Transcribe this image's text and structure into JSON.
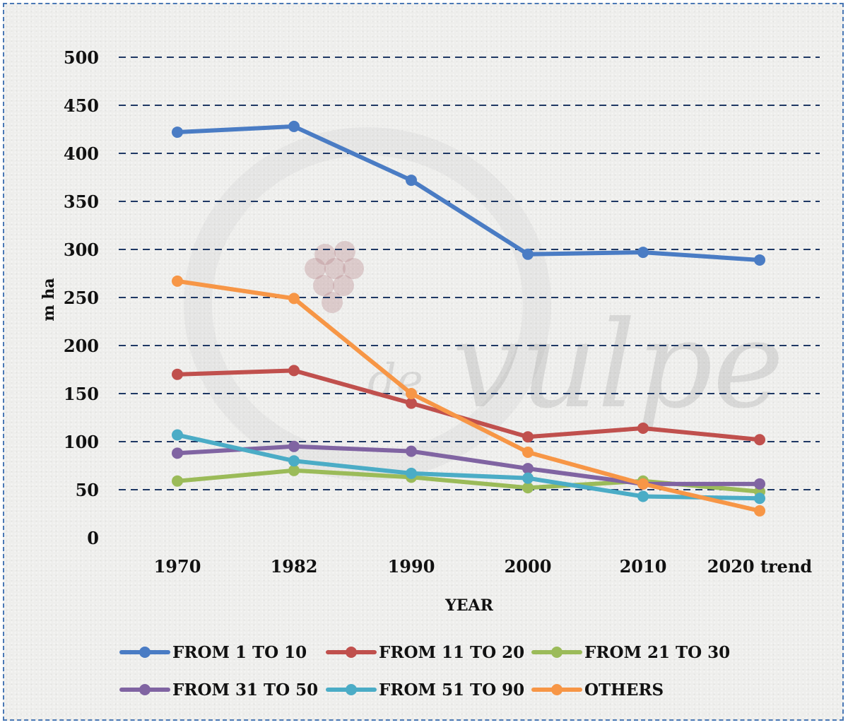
{
  "chart_data": {
    "type": "line",
    "categories": [
      "1970",
      "1982",
      "1990",
      "2000",
      "2010",
      "2020 trend"
    ],
    "xlabel": "YEAR",
    "ylabel": "m ha",
    "ylim": [
      0,
      500
    ],
    "yticks": [
      0,
      50,
      100,
      150,
      200,
      250,
      300,
      350,
      400,
      450,
      500
    ],
    "grid": "horizontal dashed",
    "legend_position": "bottom",
    "watermark": "de vulpe et uva",
    "series": [
      {
        "name": "FROM 1 TO 10",
        "color": "#4a7cc4",
        "values": [
          422,
          428,
          372,
          295,
          297,
          289
        ]
      },
      {
        "name": "FROM 11 TO 20",
        "color": "#c0504d",
        "values": [
          170,
          174,
          140,
          105,
          114,
          102
        ]
      },
      {
        "name": "FROM 21 TO 30",
        "color": "#9bbb59",
        "values": [
          59,
          70,
          63,
          52,
          59,
          48
        ]
      },
      {
        "name": "FROM 31 TO 50",
        "color": "#8064a2",
        "values": [
          88,
          95,
          90,
          72,
          56,
          56
        ]
      },
      {
        "name": "FROM 51 TO 90",
        "color": "#4bacc6",
        "values": [
          107,
          80,
          67,
          62,
          43,
          41
        ]
      },
      {
        "name": "OTHERS",
        "color": "#f79646",
        "values": [
          267,
          249,
          150,
          89,
          56,
          28
        ]
      }
    ]
  }
}
